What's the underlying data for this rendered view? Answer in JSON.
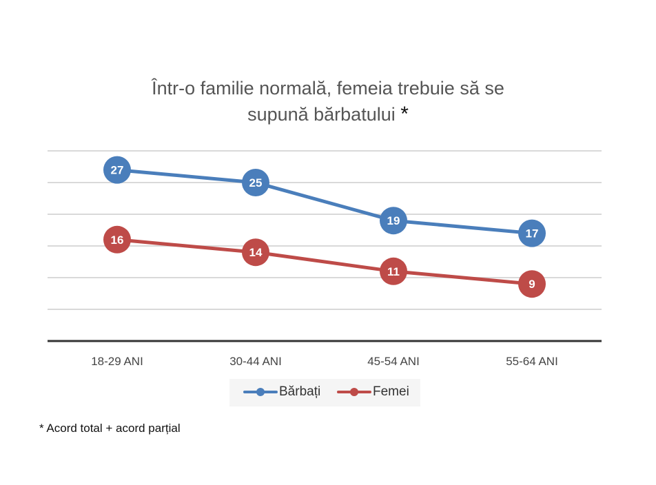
{
  "chart_data": {
    "type": "line",
    "title_line1": "Într-o familie normală, femeia trebuie să se",
    "title_line2": "supună bărbatului",
    "title_mark": "*",
    "categories": [
      "18-29 ANI",
      "30-44 ANI",
      "45-54 ANI",
      "55-64 ANI"
    ],
    "series": [
      {
        "name": "Bărbați",
        "values": [
          27,
          25,
          19,
          17
        ],
        "color": "#4a7ebb"
      },
      {
        "name": "Femei",
        "values": [
          16,
          14,
          11,
          9
        ],
        "color": "#be4b48"
      }
    ],
    "ylim": [
      0,
      30
    ],
    "gridlines": [
      5,
      10,
      15,
      20,
      25,
      30
    ],
    "grid": true,
    "y_tick_labels_shown": false,
    "data_labels": true,
    "legend_position": "bottom",
    "footnote": "* Acord total + acord parțial"
  }
}
